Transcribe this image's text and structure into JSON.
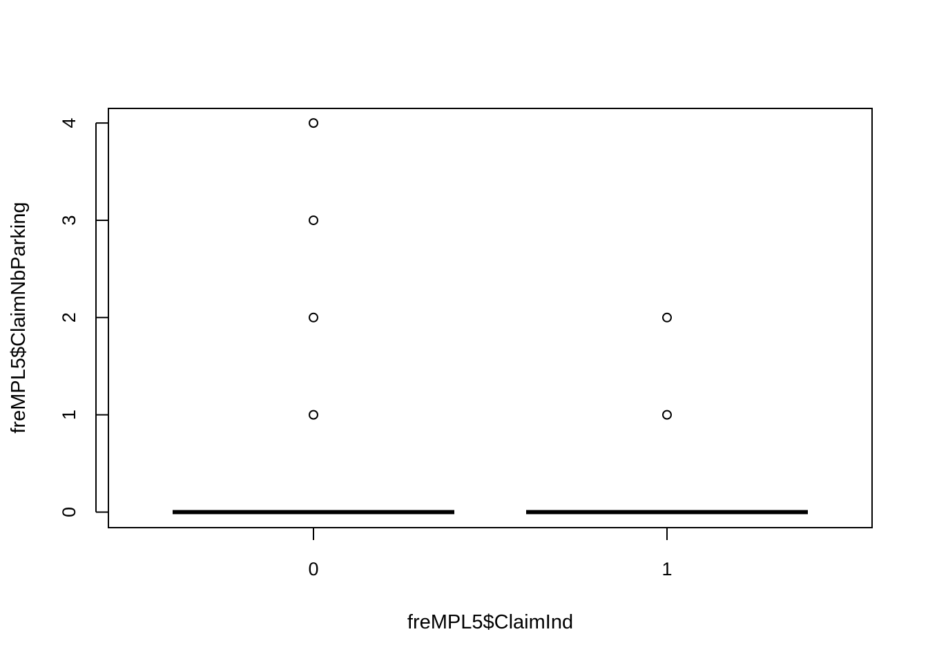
{
  "chart_data": {
    "type": "boxplot",
    "xlabel": "freMPL5$ClaimInd",
    "ylabel": "freMPL5$ClaimNbParking",
    "categories": [
      "0",
      "1"
    ],
    "y_ticks": [
      "0",
      "1",
      "2",
      "3",
      "4"
    ],
    "ylim": [
      -0.16,
      4.15
    ],
    "grid": false,
    "legend": "none",
    "boxes": [
      {
        "category": "0",
        "min": 0,
        "q1": 0,
        "median": 0,
        "q3": 0,
        "max": 0,
        "outliers": [
          1,
          2,
          3,
          4
        ]
      },
      {
        "category": "1",
        "min": 0,
        "q1": 0,
        "median": 0,
        "q3": 0,
        "max": 0,
        "outliers": [
          1,
          2
        ]
      }
    ]
  }
}
